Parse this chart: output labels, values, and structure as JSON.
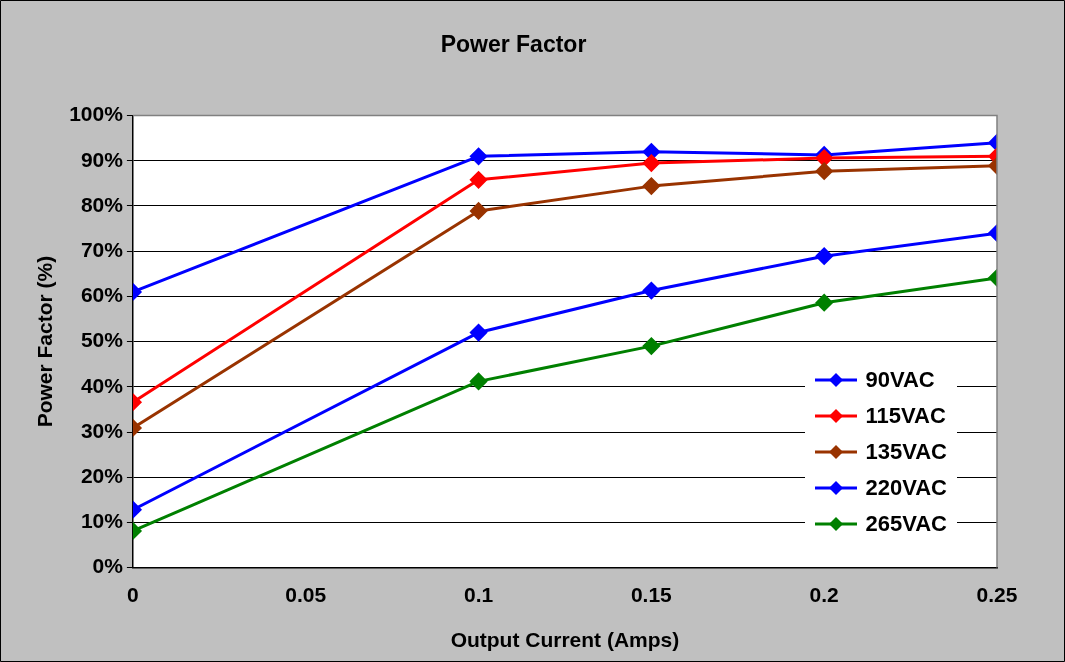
{
  "chart_data": {
    "type": "line",
    "title": "Power Factor",
    "xlabel": "Output Current (Amps)",
    "ylabel": "Power Factor (%)",
    "x": [
      0,
      0.1,
      0.15,
      0.2,
      0.25
    ],
    "series": [
      {
        "name": "90VAC",
        "color": "#0000ff",
        "values": [
          61,
          91,
          92,
          91.3,
          94
        ]
      },
      {
        "name": "115VAC",
        "color": "#ff0000",
        "values": [
          36.6,
          85.8,
          89.5,
          90.6,
          91
        ]
      },
      {
        "name": "135VAC",
        "color": "#993300",
        "values": [
          30.9,
          78.9,
          84.4,
          87.7,
          88.9
        ]
      },
      {
        "name": "220VAC",
        "color": "#0000ff",
        "values": [
          12.8,
          52,
          61.3,
          68.9,
          74
        ]
      },
      {
        "name": "265VAC",
        "color": "#008000",
        "values": [
          8.1,
          41.2,
          49,
          58.6,
          64.1
        ]
      }
    ],
    "xlim": [
      0,
      0.25
    ],
    "xticks": [
      0,
      0.05,
      0.1,
      0.15,
      0.2,
      0.25
    ],
    "ylim": [
      0,
      100
    ],
    "yticks": [
      {
        "value": 0,
        "label": "0%"
      },
      {
        "value": 10,
        "label": "10%"
      },
      {
        "value": 20,
        "label": "20%"
      },
      {
        "value": 30,
        "label": "30%"
      },
      {
        "value": 40,
        "label": "40%"
      },
      {
        "value": 50,
        "label": "50%"
      },
      {
        "value": 60,
        "label": "60%"
      },
      {
        "value": 70,
        "label": "70%"
      },
      {
        "value": 80,
        "label": "80%"
      },
      {
        "value": 90,
        "label": "90%"
      },
      {
        "value": 100,
        "label": "100%"
      }
    ],
    "grid": "y",
    "legend": "bottom right",
    "marker": "diamond",
    "line_style": "solid"
  }
}
